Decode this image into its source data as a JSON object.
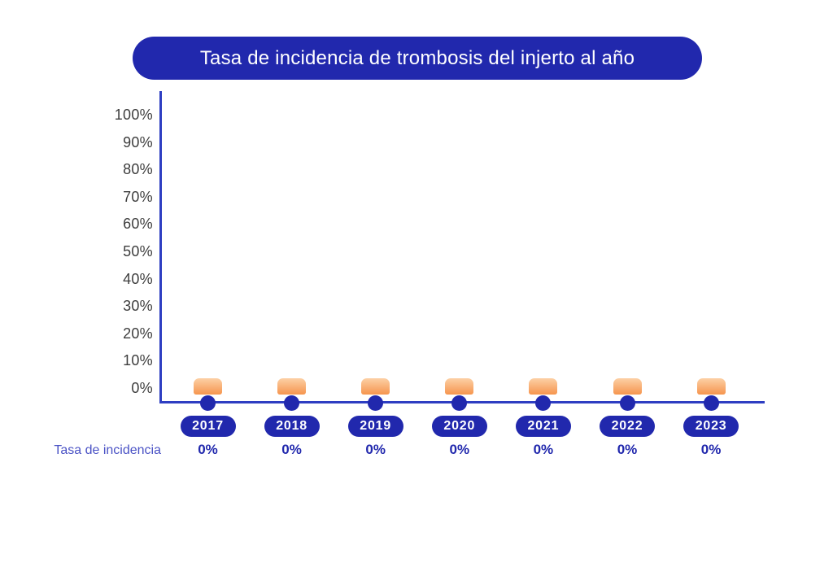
{
  "title": "Tasa de incidencia de trombosis del injerto al año",
  "y_axis": {
    "tick_labels": [
      "100%",
      "90%",
      "80%",
      "70%",
      "60%",
      "50%",
      "40%",
      "30%",
      "20%",
      "10%",
      "0%"
    ]
  },
  "x_axis": {
    "year_labels": [
      "2017",
      "2018",
      "2019",
      "2020",
      "2021",
      "2022",
      "2023"
    ]
  },
  "legend": {
    "label": "Tasa de incidencia"
  },
  "values": {
    "labels": [
      "0%",
      "0%",
      "0%",
      "0%",
      "0%",
      "0%",
      "0%"
    ]
  },
  "colors": {
    "primary_blue": "#2128AD",
    "axis_blue": "#2E3EC2",
    "label_blue": "#4A52C5",
    "tick_gray": "#3D3D3D",
    "bar_top": "#FCD0A6",
    "bar_bottom": "#F6954E"
  },
  "chart_data": {
    "type": "bar",
    "title": "Tasa de incidencia de trombosis del injerto al año",
    "categories": [
      "2017",
      "2018",
      "2019",
      "2020",
      "2021",
      "2022",
      "2023"
    ],
    "series": [
      {
        "name": "Tasa de incidencia",
        "values": [
          0,
          0,
          0,
          0,
          0,
          0,
          0
        ]
      }
    ],
    "data_labels": [
      "0%",
      "0%",
      "0%",
      "0%",
      "0%",
      "0%",
      "0%"
    ],
    "xlabel": "",
    "ylabel": "",
    "ylim": [
      0,
      100
    ],
    "y_tick_step": 10,
    "y_tick_format": "percent",
    "grid": false,
    "legend_position": "bottom-left"
  }
}
